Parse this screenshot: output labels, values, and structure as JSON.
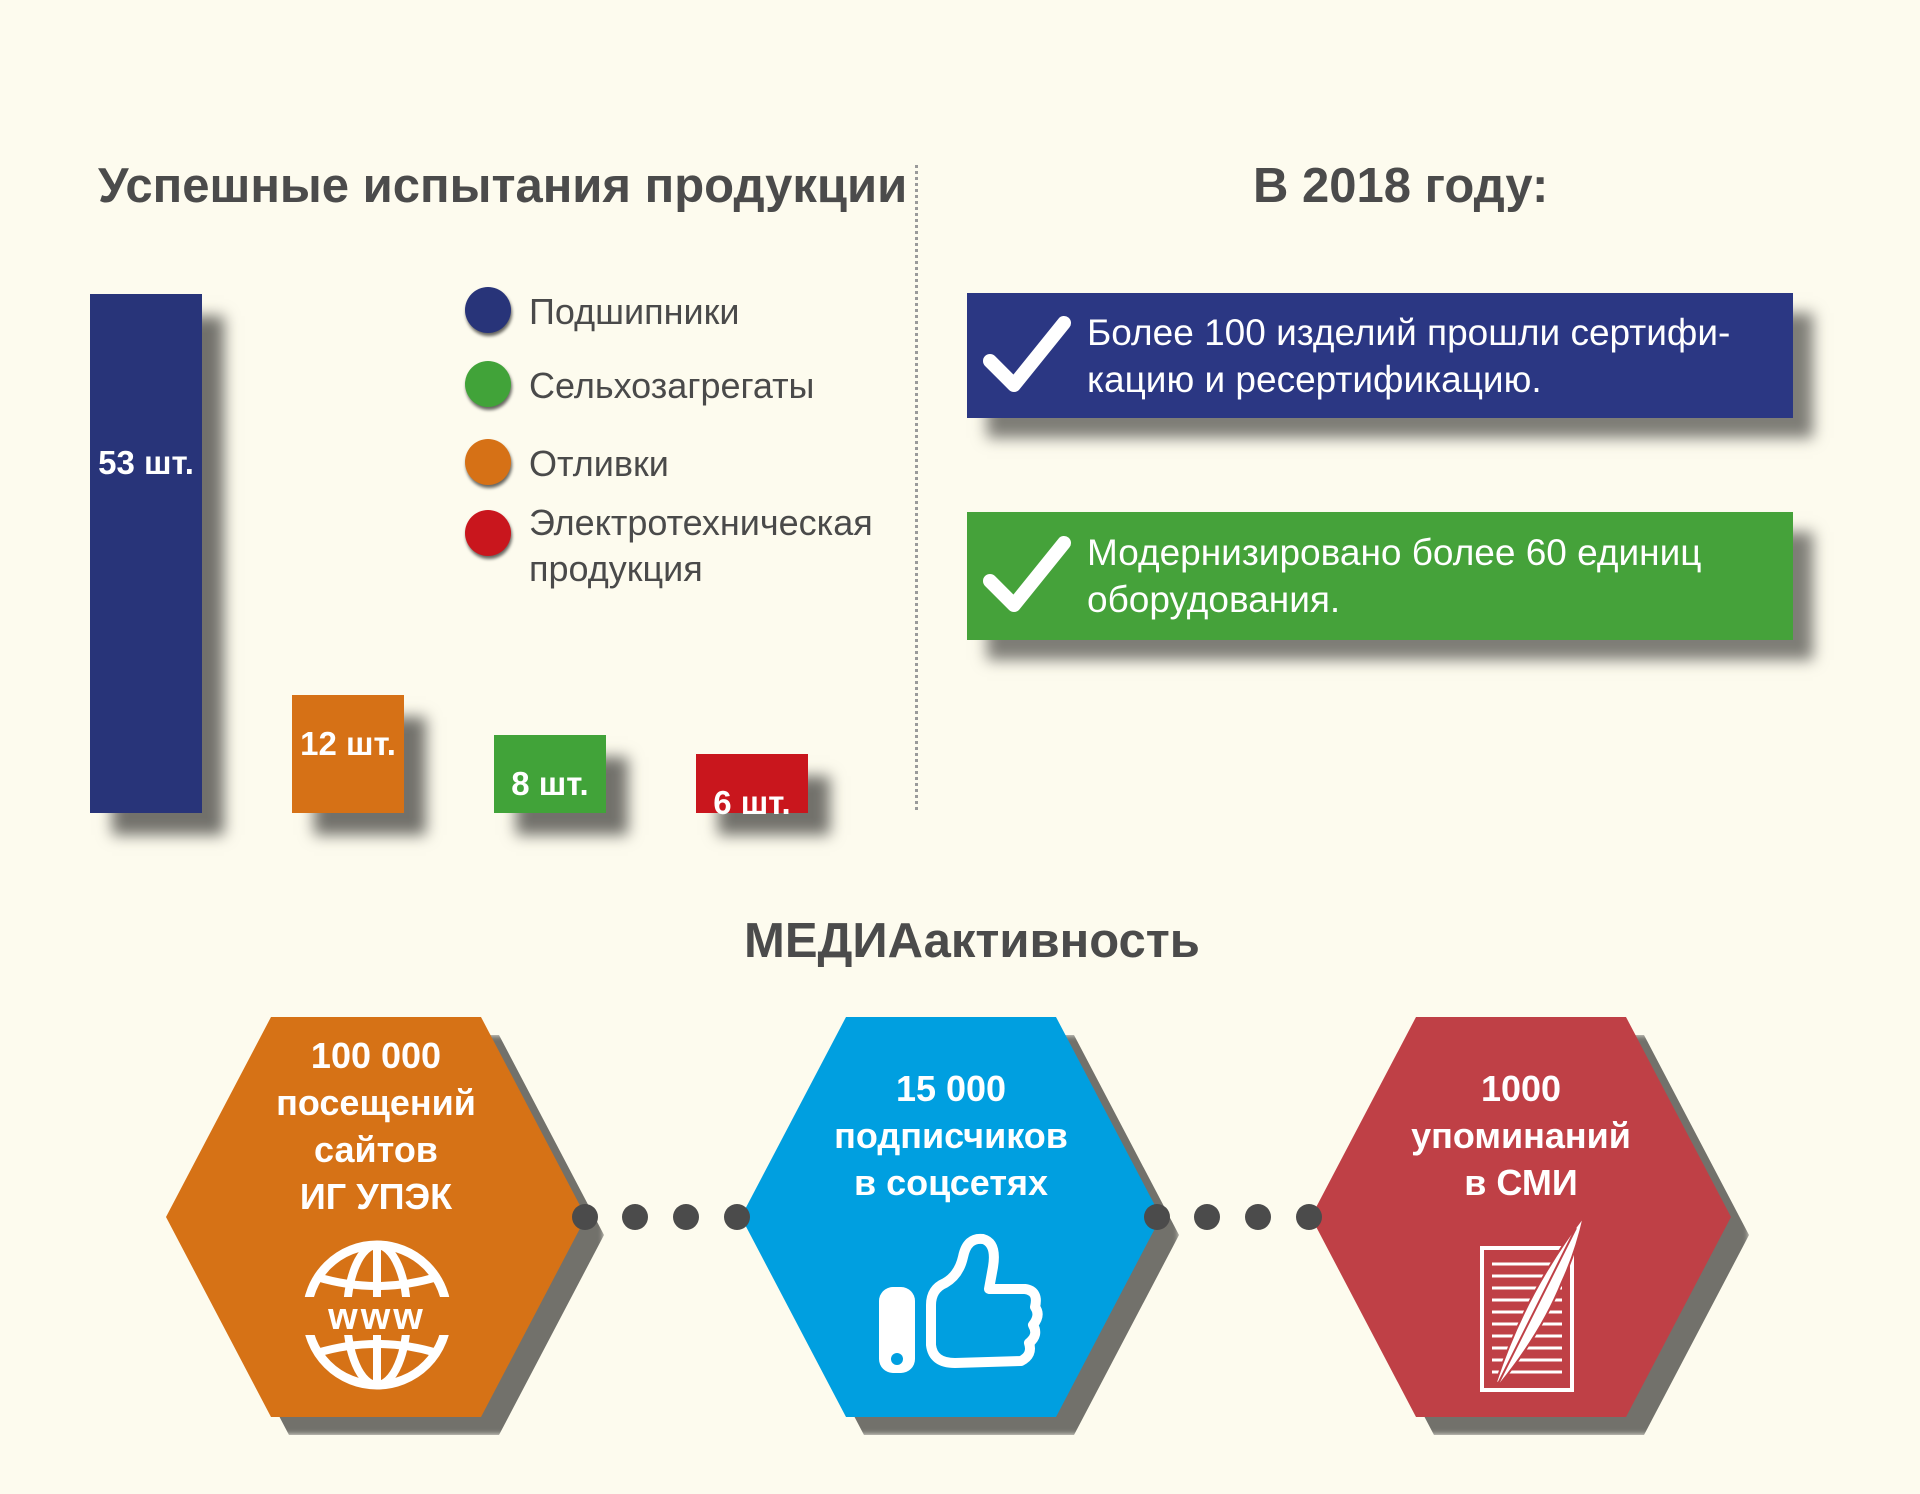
{
  "left_title": "Успешные испытания продукции",
  "right_title": "В 2018 году:",
  "media_title": "МЕДИАактивность",
  "chart_data": {
    "type": "bar",
    "title": "Успешные испытания продукции",
    "categories": [
      "Подшипники",
      "Отливки",
      "Сельхозагрегаты",
      "Электротехническая продукция"
    ],
    "values": [
      53,
      12,
      8,
      6
    ],
    "labels": [
      "53 шт.",
      "12 шт.",
      "8 шт.",
      "6 шт."
    ],
    "colors": [
      "#283479",
      "#d67116",
      "#41a339",
      "#c9161d"
    ],
    "xlabel": "",
    "ylabel": "",
    "grid": false,
    "legend": "right"
  },
  "legend": [
    {
      "label": "Подшипники",
      "color": "#283479"
    },
    {
      "label": "Сельхозагрегаты",
      "color": "#41a339"
    },
    {
      "label": "Отливки",
      "color": "#d67116"
    },
    {
      "label": "Электротехническая продукция",
      "color": "#c9161d"
    }
  ],
  "achievements": [
    {
      "text": "Более 100 изделий прошли сертифи-кацию и ресертификацию.",
      "color": "#2b3783",
      "icon": "checkmark-icon"
    },
    {
      "text": "Модернизировано более 60 единиц оборудования.",
      "color": "#45a23a",
      "icon": "checkmark-icon"
    }
  ],
  "media": [
    {
      "lines": [
        "100 000",
        "посещений",
        "сайтов",
        "ИГ УПЭК"
      ],
      "color": "#d67216",
      "icon": "globe-www-icon"
    },
    {
      "lines": [
        "15 000",
        "подписчиков",
        "в соцсетях"
      ],
      "color": "#009fe0",
      "icon": "thumbs-up-icon"
    },
    {
      "lines": [
        "1000",
        "упоминаний",
        "в СМИ"
      ],
      "color": "#bf4046",
      "icon": "document-quill-icon"
    }
  ]
}
